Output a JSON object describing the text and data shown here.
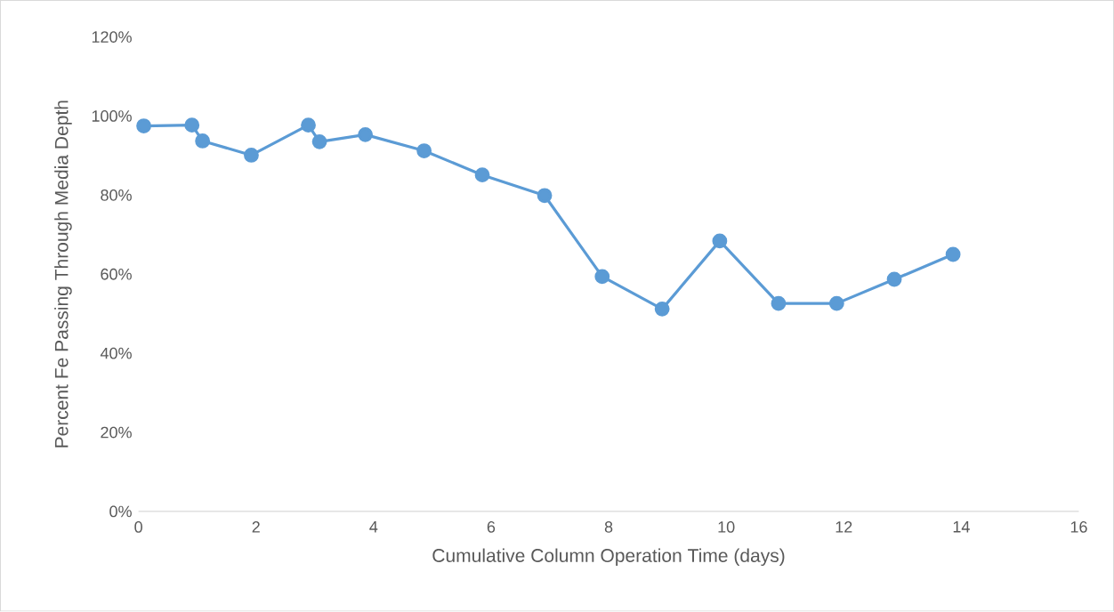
{
  "chart_data": {
    "type": "line",
    "xlabel": "Cumulative Column Operation Time (days)",
    "ylabel": "Percent Fe Passing Through Media Depth",
    "x": [
      0.09,
      0.91,
      1.09,
      1.92,
      2.89,
      3.08,
      3.86,
      4.86,
      5.85,
      6.91,
      7.89,
      8.91,
      9.89,
      10.89,
      11.88,
      12.86,
      13.86
    ],
    "series": [
      {
        "color": "#5b9bd5",
        "values": [
          97.5,
          97.7,
          93.7,
          90.1,
          97.7,
          93.5,
          95.3,
          91.2,
          85.1,
          79.9,
          59.4,
          51.2,
          68.4,
          52.6,
          52.6,
          58.7,
          65.0
        ]
      }
    ],
    "xlim": [
      0,
      16
    ],
    "xticks": [
      0,
      2,
      4,
      6,
      8,
      10,
      12,
      14,
      16
    ],
    "ylim": [
      0,
      120
    ],
    "yticks": [
      {
        "value": 0,
        "label": "0%"
      },
      {
        "value": 20,
        "label": "20%"
      },
      {
        "value": 40,
        "label": "40%"
      },
      {
        "value": 60,
        "label": "60%"
      },
      {
        "value": 80,
        "label": "80%"
      },
      {
        "value": 100,
        "label": "100%"
      },
      {
        "value": 120,
        "label": "120%"
      }
    ],
    "marker": "circle",
    "line_style": "solid"
  }
}
